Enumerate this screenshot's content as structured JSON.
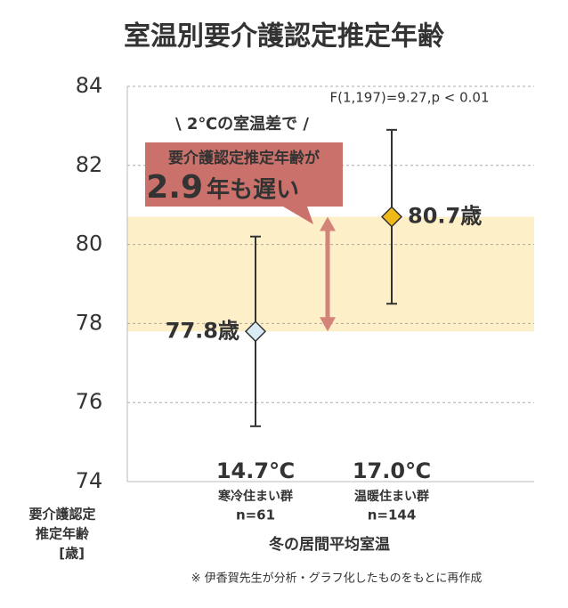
{
  "chart_data": {
    "type": "errorbar",
    "title": "室温別要介護認定推定年齢",
    "y_label": [
      "要介護認定",
      "推定年齢",
      "[歳]"
    ],
    "x_label": "冬の居間平均室温",
    "categories": [
      "14.7℃",
      "17.0℃"
    ],
    "groups": [
      "寒冷住まい群",
      "温暖住まい群"
    ],
    "sample_sizes": [
      "n=61",
      "n=144"
    ],
    "values": [
      77.8,
      80.7
    ],
    "value_labels": [
      "77.8歳",
      "80.7歳"
    ],
    "lower": [
      75.4,
      78.5
    ],
    "upper": [
      80.2,
      82.9
    ],
    "colors": [
      "#d9ecf5",
      "#f0b91a"
    ],
    "band_color": "#fdefc8",
    "ylim": [
      74,
      84
    ],
    "yticks": [
      74,
      76,
      78,
      80,
      82,
      84
    ],
    "grid": true,
    "statistic": "F(1,197)=9.27,p < 0.01",
    "annotation": {
      "lead": "\\ 2℃の室温差で /",
      "line1": "要介護認定推定年齢が",
      "highlight": "2.9",
      "suffix": "年も遅い",
      "color": "#c9716a"
    },
    "note": "※ 伊香賀先生が分析・グラフ化したものをもとに再作成"
  }
}
